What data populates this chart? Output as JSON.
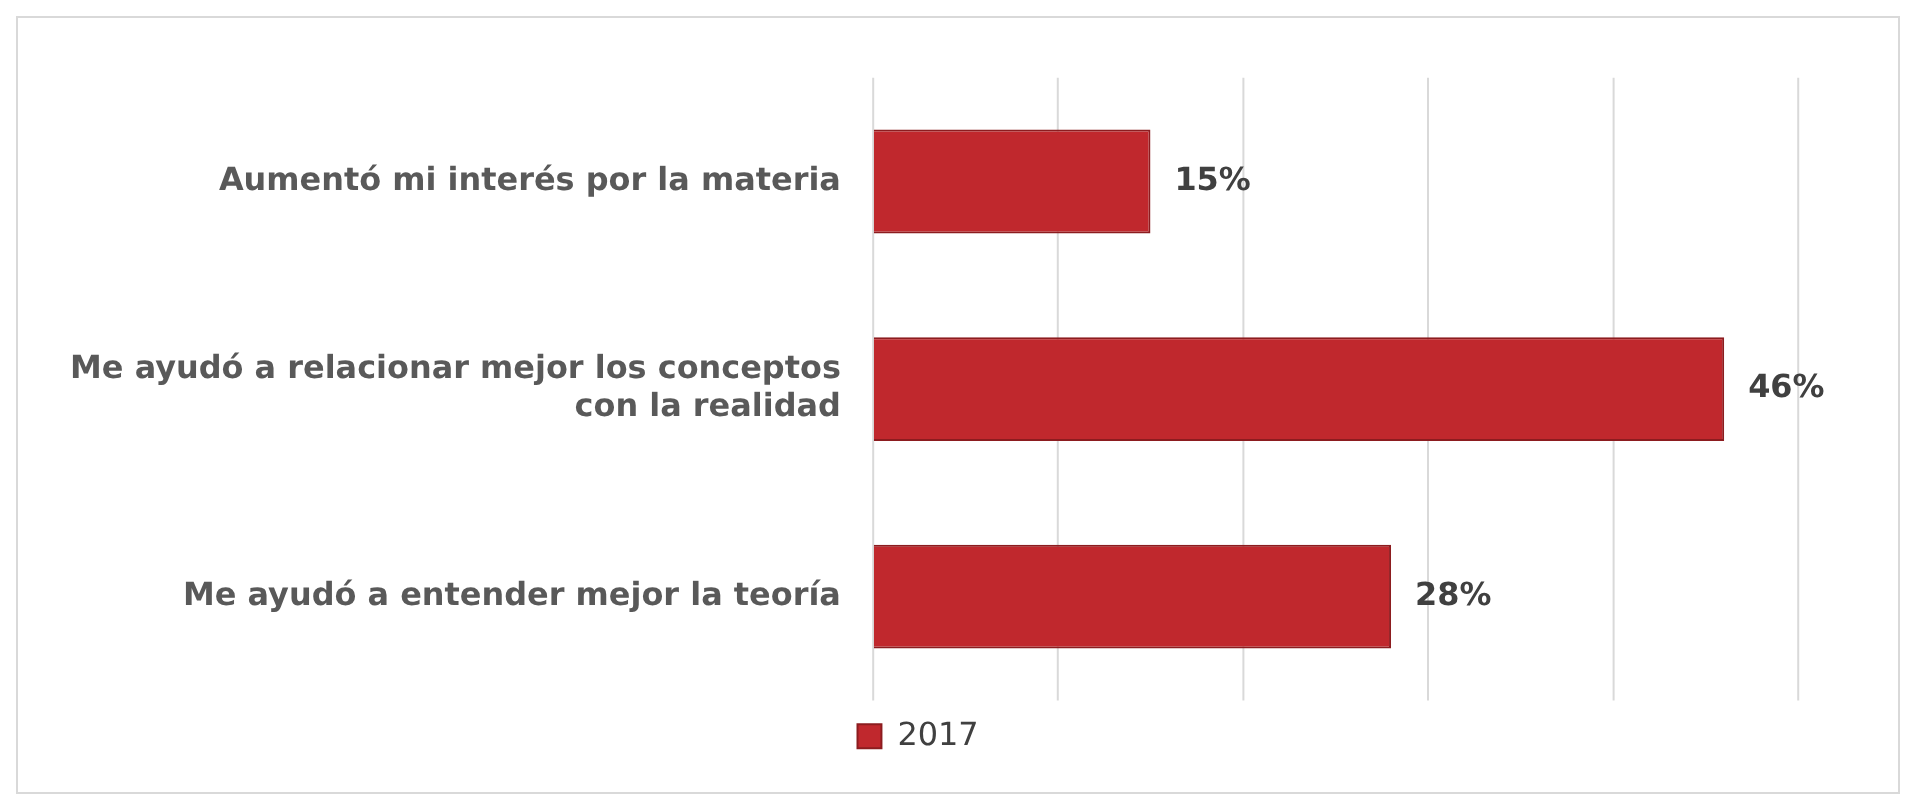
{
  "chart_data": {
    "type": "bar",
    "orientation": "horizontal",
    "categories": [
      "Aumentó mi interés por la materia",
      "Me ayudó a relacionar mejor los conceptos con la realidad",
      "Me ayudó a entender mejor la teoría"
    ],
    "series": [
      {
        "name": "2017",
        "color": "#c0282d",
        "values": [
          15,
          46,
          28
        ],
        "value_labels": [
          "15%",
          "46%",
          "28%"
        ]
      }
    ],
    "xlim": [
      0,
      50
    ],
    "xticks": [
      {
        "value": 0,
        "label": null
      },
      {
        "value": 10,
        "label": null
      },
      {
        "value": 20,
        "label": null
      },
      {
        "value": 30,
        "label": null
      },
      {
        "value": 40,
        "label": null
      },
      {
        "value": 50,
        "label": null
      }
    ],
    "tick_labels": "y",
    "grid": "x",
    "legend": "bottom"
  }
}
